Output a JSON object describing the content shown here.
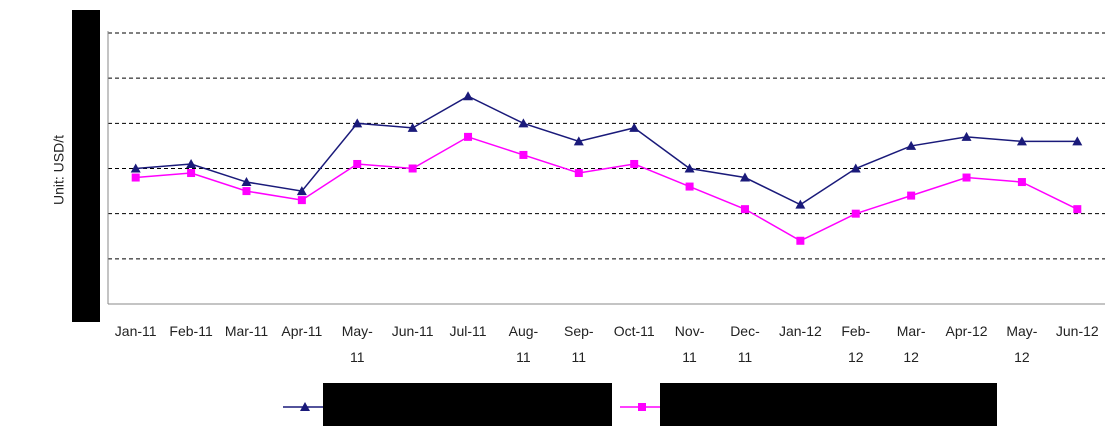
{
  "chart_data": {
    "type": "line",
    "ylabel": "Unit: USD/t",
    "categories": [
      "Jan-11",
      "Feb-11",
      "Mar-11",
      "Apr-11",
      "May-11",
      "Jun-11",
      "Jul-11",
      "Aug-11",
      "Sep-11",
      "Oct-11",
      "Nov-11",
      "Dec-11",
      "Jan-12",
      "Feb-12",
      "Mar-12",
      "Apr-12",
      "May-12",
      "Jun-12"
    ],
    "series": [
      {
        "color": "#1a1a7a",
        "marker": "triangle",
        "values": [
          3.0,
          3.1,
          2.7,
          2.5,
          4.0,
          3.9,
          4.6,
          4.0,
          3.6,
          3.9,
          3.0,
          2.8,
          2.2,
          3.0,
          3.5,
          3.7,
          3.6,
          3.6
        ]
      },
      {
        "color": "#ff00ff",
        "marker": "square",
        "values": [
          2.8,
          2.9,
          2.5,
          2.3,
          3.1,
          3.0,
          3.7,
          3.3,
          2.9,
          3.1,
          2.6,
          2.1,
          1.4,
          2.0,
          2.4,
          2.8,
          2.7,
          2.1
        ]
      }
    ],
    "ylim": [
      0,
      6
    ],
    "yticks": [
      0,
      1,
      2,
      3,
      4,
      5,
      6
    ],
    "grid": true
  }
}
